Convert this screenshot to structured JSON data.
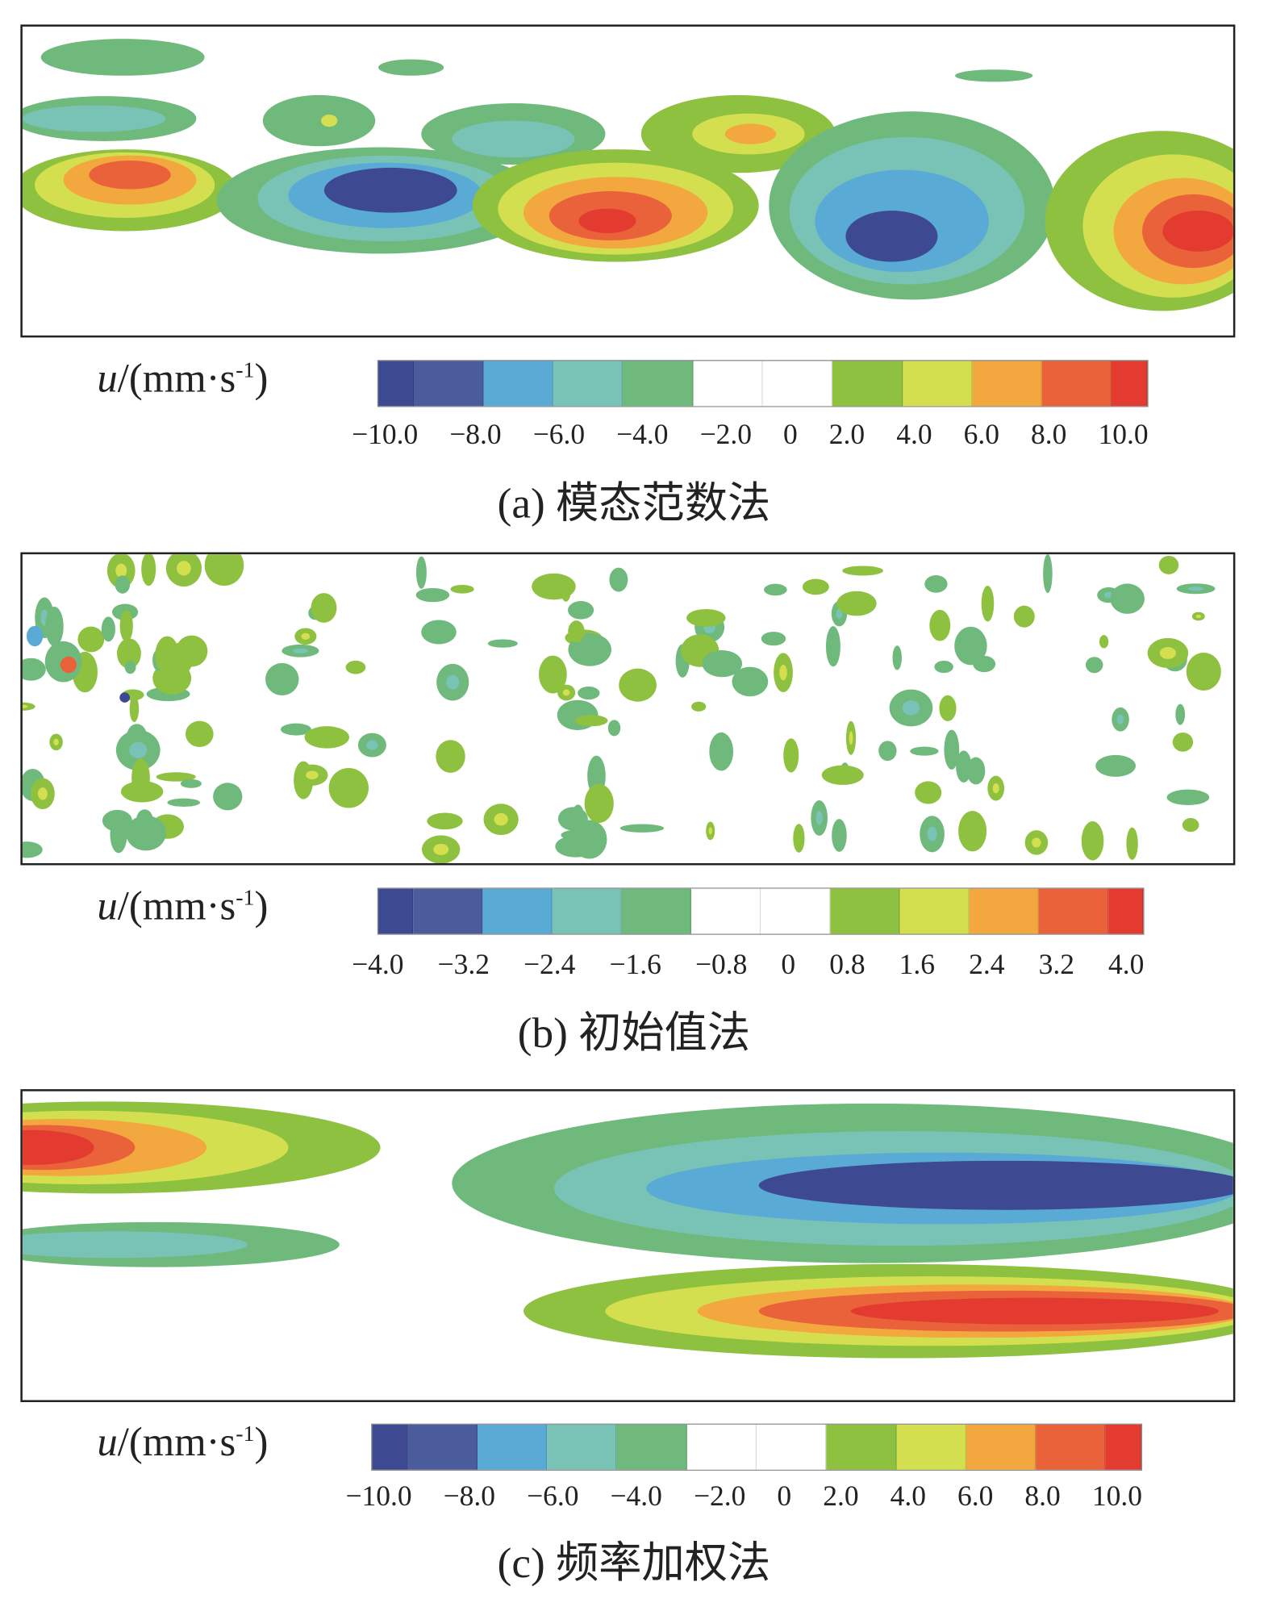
{
  "chart_data": [
    {
      "type": "heatmap",
      "panel": "a",
      "caption": "(a) 模态范数法",
      "colorbar_label": {
        "var": "u",
        "unit": "/(mm·s",
        "exp": "-1",
        ")": ")"
      },
      "colorbar_ticks": [
        "−10.0",
        "−8.0",
        "−6.0",
        "−4.0",
        "−2.0",
        "0",
        "2.0",
        "4.0",
        "6.0",
        "8.0",
        "10.0"
      ],
      "range": [
        -10,
        10
      ]
    },
    {
      "type": "heatmap",
      "panel": "b",
      "caption": "(b) 初始值法",
      "colorbar_label": {
        "var": "u",
        "unit": "/(mm·s",
        "exp": "-1"
      },
      "colorbar_ticks": [
        "−4.0",
        "−3.2",
        "−2.4",
        "−1.6",
        "−0.8",
        "0",
        "0.8",
        "1.6",
        "2.4",
        "3.2",
        "4.0"
      ],
      "range": [
        -4,
        4
      ]
    },
    {
      "type": "heatmap",
      "panel": "c",
      "caption": "(c) 频率加权法",
      "colorbar_label": {
        "var": "u",
        "unit": "/(mm·s",
        "exp": "-1"
      },
      "colorbar_ticks": [
        "−10.0",
        "−8.0",
        "−6.0",
        "−4.0",
        "−2.0",
        "0",
        "2.0",
        "4.0",
        "6.0",
        "8.0",
        "10.0"
      ],
      "range": [
        -10,
        10
      ]
    }
  ],
  "colors": [
    "#3d4a91",
    "#4a5c9c",
    "#5aaad6",
    "#79c3b6",
    "#70b97c",
    "#ffffff",
    "#ffffff",
    "#8ec13f",
    "#d4df4f",
    "#f3a73f",
    "#e9623a",
    "#e33b2f"
  ],
  "close_paren": ")"
}
